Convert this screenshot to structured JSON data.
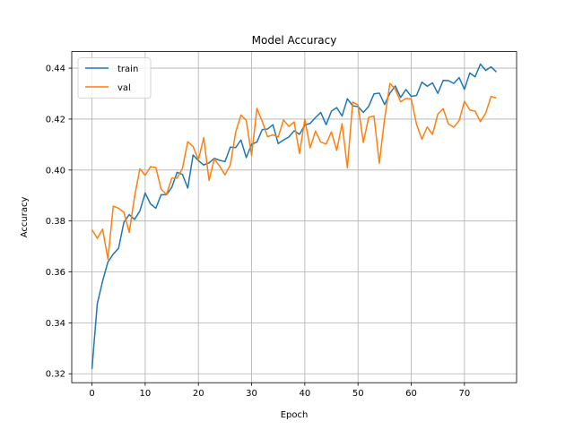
{
  "chart_data": {
    "type": "line",
    "title": "Model Accuracy",
    "xlabel": "Epoch",
    "ylabel": "Accuracy",
    "xlim": [
      -3.8,
      79.8
    ],
    "ylim": [
      0.3165,
      0.4465
    ],
    "xticks": [
      0,
      10,
      20,
      30,
      40,
      50,
      60,
      70
    ],
    "yticks": [
      0.32,
      0.34,
      0.36,
      0.38,
      0.4,
      0.42,
      0.44
    ],
    "ytick_labels": [
      "0.32",
      "0.34",
      "0.36",
      "0.38",
      "0.40",
      "0.42",
      "0.44"
    ],
    "grid": true,
    "legend_position": "upper-left",
    "series": [
      {
        "name": "train",
        "color": "#1f77b4",
        "x": [
          0,
          1,
          2,
          3,
          4,
          5,
          6,
          7,
          8,
          9,
          10,
          11,
          12,
          13,
          14,
          15,
          16,
          17,
          18,
          19,
          20,
          21,
          22,
          23,
          24,
          25,
          26,
          27,
          28,
          29,
          30,
          31,
          32,
          33,
          34,
          35,
          36,
          37,
          38,
          39,
          40,
          41,
          42,
          43,
          44,
          45,
          46,
          47,
          48,
          49,
          50,
          51,
          52,
          53,
          54,
          55,
          56,
          57,
          58,
          59,
          60,
          61,
          62,
          63,
          64,
          65,
          66,
          67,
          68,
          69,
          70,
          71,
          72,
          73,
          74,
          75,
          76
        ],
        "values": [
          0.3219,
          0.3475,
          0.3564,
          0.3639,
          0.367,
          0.3693,
          0.3795,
          0.3825,
          0.3806,
          0.3839,
          0.391,
          0.3867,
          0.385,
          0.3903,
          0.3903,
          0.3932,
          0.3991,
          0.3983,
          0.3929,
          0.4059,
          0.4037,
          0.402,
          0.4028,
          0.4046,
          0.4038,
          0.4033,
          0.409,
          0.4088,
          0.4118,
          0.4049,
          0.4101,
          0.411,
          0.4159,
          0.4161,
          0.4178,
          0.4104,
          0.4118,
          0.413,
          0.4154,
          0.414,
          0.4177,
          0.4183,
          0.4206,
          0.4226,
          0.4178,
          0.4231,
          0.4245,
          0.4212,
          0.428,
          0.4252,
          0.4249,
          0.4226,
          0.425,
          0.4299,
          0.4302,
          0.4257,
          0.4302,
          0.433,
          0.4285,
          0.4316,
          0.4289,
          0.4293,
          0.4345,
          0.4329,
          0.4342,
          0.4301,
          0.4352,
          0.4351,
          0.434,
          0.4363,
          0.4317,
          0.4381,
          0.4366,
          0.4416,
          0.4391,
          0.4405,
          0.4385
        ]
      },
      {
        "name": "val",
        "color": "#ff7f0e",
        "x": [
          0,
          1,
          2,
          3,
          4,
          5,
          6,
          7,
          8,
          9,
          10,
          11,
          12,
          13,
          14,
          15,
          16,
          17,
          18,
          19,
          20,
          21,
          22,
          23,
          24,
          25,
          26,
          27,
          28,
          29,
          30,
          31,
          32,
          33,
          34,
          35,
          36,
          37,
          38,
          39,
          40,
          41,
          42,
          43,
          44,
          45,
          46,
          47,
          48,
          49,
          50,
          51,
          52,
          53,
          54,
          55,
          56,
          57,
          58,
          59,
          60,
          61,
          62,
          63,
          64,
          65,
          66,
          67,
          68,
          69,
          70,
          71,
          72,
          73,
          74,
          75,
          76
        ],
        "values": [
          0.3766,
          0.3732,
          0.3768,
          0.365,
          0.3858,
          0.385,
          0.3834,
          0.3755,
          0.3895,
          0.4005,
          0.3979,
          0.4013,
          0.401,
          0.3925,
          0.3904,
          0.3968,
          0.3968,
          0.4007,
          0.4111,
          0.4092,
          0.404,
          0.4127,
          0.3959,
          0.4044,
          0.4015,
          0.3981,
          0.402,
          0.4148,
          0.4216,
          0.4195,
          0.4057,
          0.4242,
          0.4191,
          0.4131,
          0.4138,
          0.413,
          0.4197,
          0.4171,
          0.4189,
          0.4065,
          0.4199,
          0.4087,
          0.4153,
          0.411,
          0.4102,
          0.415,
          0.4077,
          0.4182,
          0.4008,
          0.4267,
          0.4255,
          0.4108,
          0.4207,
          0.4212,
          0.4027,
          0.4202,
          0.434,
          0.4317,
          0.4268,
          0.4281,
          0.428,
          0.4179,
          0.4121,
          0.4169,
          0.414,
          0.422,
          0.4241,
          0.4181,
          0.4168,
          0.4194,
          0.427,
          0.4236,
          0.4231,
          0.419,
          0.4224,
          0.4289,
          0.4283
        ]
      }
    ]
  }
}
